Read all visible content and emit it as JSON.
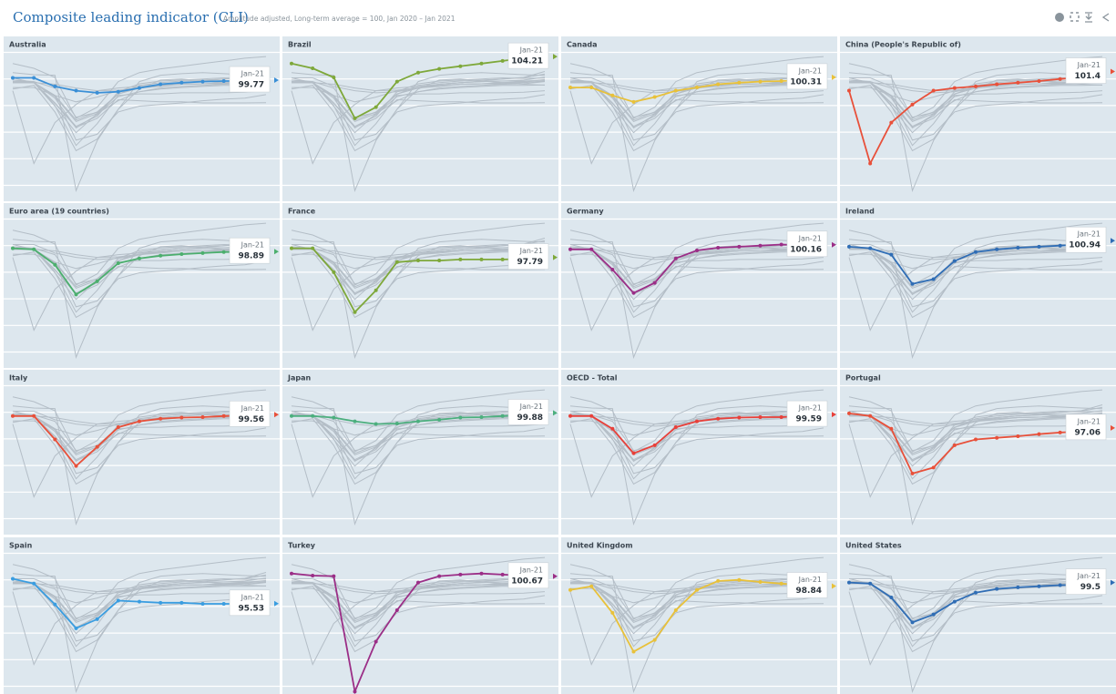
{
  "chart_data": {
    "type": "line",
    "title": "Composite leading indicator (CLI)",
    "subtitle": "Amplitude adjusted, Long-term average = 100, Jan 2020 – Jan 2021",
    "categories": [
      null,
      null,
      null,
      null,
      null,
      null,
      null,
      null,
      null,
      null,
      null,
      null,
      "Jan-21"
    ],
    "ylim": [
      77,
      108
    ],
    "yticks": [
      80,
      85,
      90,
      95,
      100,
      105
    ],
    "grid": true,
    "series": [
      {
        "name": "Australia",
        "color": "#3a8fd6",
        "values": [
          100.2,
          100.2,
          98.6,
          97.8,
          97.4,
          97.6,
          98.3,
          99.0,
          99.3,
          99.5,
          99.6,
          99.6,
          99.77
        ]
      },
      {
        "name": "Brazil",
        "color": "#7ea83a",
        "values": [
          102.9,
          102.0,
          100.3,
          92.6,
          94.7,
          99.5,
          101.2,
          101.9,
          102.4,
          102.9,
          103.4,
          103.9,
          104.21
        ]
      },
      {
        "name": "Canada",
        "color": "#e8c13a",
        "values": [
          98.4,
          98.4,
          96.9,
          95.7,
          96.6,
          97.8,
          98.4,
          99.0,
          99.3,
          99.5,
          99.6,
          99.8,
          100.31
        ]
      },
      {
        "name": "China (People's Republic of)",
        "color": "#e8503a",
        "values": [
          97.8,
          84.1,
          91.8,
          95.2,
          97.8,
          98.3,
          98.6,
          99.0,
          99.3,
          99.6,
          100.0,
          100.3,
          101.4
        ]
      },
      {
        "name": "Euro area (19 countries)",
        "color": "#4caf6e",
        "values": [
          99.5,
          99.3,
          96.4,
          90.8,
          93.3,
          96.7,
          97.6,
          98.1,
          98.4,
          98.6,
          98.8,
          98.8,
          98.89
        ]
      },
      {
        "name": "France",
        "color": "#7ea83a",
        "values": [
          99.5,
          99.5,
          95.0,
          87.5,
          91.6,
          96.9,
          97.2,
          97.2,
          97.4,
          97.4,
          97.4,
          97.5,
          97.79
        ]
      },
      {
        "name": "Germany",
        "color": "#9b2e87",
        "values": [
          99.3,
          99.3,
          95.5,
          91.1,
          93.0,
          97.6,
          99.1,
          99.6,
          99.8,
          100.0,
          100.2,
          100.1,
          100.16
        ]
      },
      {
        "name": "Ireland",
        "color": "#2f6db5",
        "values": [
          99.8,
          99.5,
          98.3,
          92.8,
          93.7,
          97.1,
          98.8,
          99.3,
          99.6,
          99.8,
          100.0,
          100.2,
          100.94
        ]
      },
      {
        "name": "Italy",
        "color": "#e8503a",
        "values": [
          99.3,
          99.3,
          94.9,
          89.9,
          93.5,
          97.2,
          98.3,
          98.8,
          99.0,
          99.1,
          99.3,
          99.4,
          99.56
        ]
      },
      {
        "name": "Japan",
        "color": "#4caf7e",
        "values": [
          99.3,
          99.3,
          99.0,
          98.3,
          97.8,
          97.9,
          98.3,
          98.6,
          99.0,
          99.1,
          99.3,
          99.5,
          99.88
        ]
      },
      {
        "name": "OECD - Total",
        "color": "#e8403a",
        "values": [
          99.3,
          99.3,
          96.9,
          92.3,
          93.8,
          97.2,
          98.3,
          98.8,
          99.0,
          99.1,
          99.1,
          99.3,
          99.59
        ]
      },
      {
        "name": "Portugal",
        "color": "#e8503a",
        "values": [
          99.8,
          99.3,
          96.9,
          88.5,
          89.6,
          93.8,
          94.9,
          95.2,
          95.5,
          95.9,
          96.2,
          96.4,
          97.06
        ]
      },
      {
        "name": "Spain",
        "color": "#3a9de0",
        "values": [
          100.2,
          99.3,
          95.4,
          90.9,
          92.6,
          96.1,
          95.9,
          95.7,
          95.7,
          95.5,
          95.5,
          95.5,
          95.53
        ]
      },
      {
        "name": "Turkey",
        "color": "#9b2e87",
        "values": [
          101.2,
          100.8,
          100.7,
          79.0,
          88.4,
          94.3,
          99.5,
          100.7,
          101.0,
          101.2,
          101.0,
          100.8,
          100.67
        ]
      },
      {
        "name": "United Kingdom",
        "color": "#e8c13a",
        "values": [
          98.1,
          98.8,
          93.8,
          86.5,
          88.7,
          94.3,
          98.1,
          99.8,
          100.0,
          99.6,
          99.3,
          99.0,
          98.84
        ]
      },
      {
        "name": "United States",
        "color": "#2f6db5",
        "values": [
          99.5,
          99.3,
          96.7,
          92.0,
          93.5,
          95.9,
          97.6,
          98.3,
          98.6,
          98.8,
          99.0,
          99.1,
          99.5
        ]
      }
    ]
  }
}
